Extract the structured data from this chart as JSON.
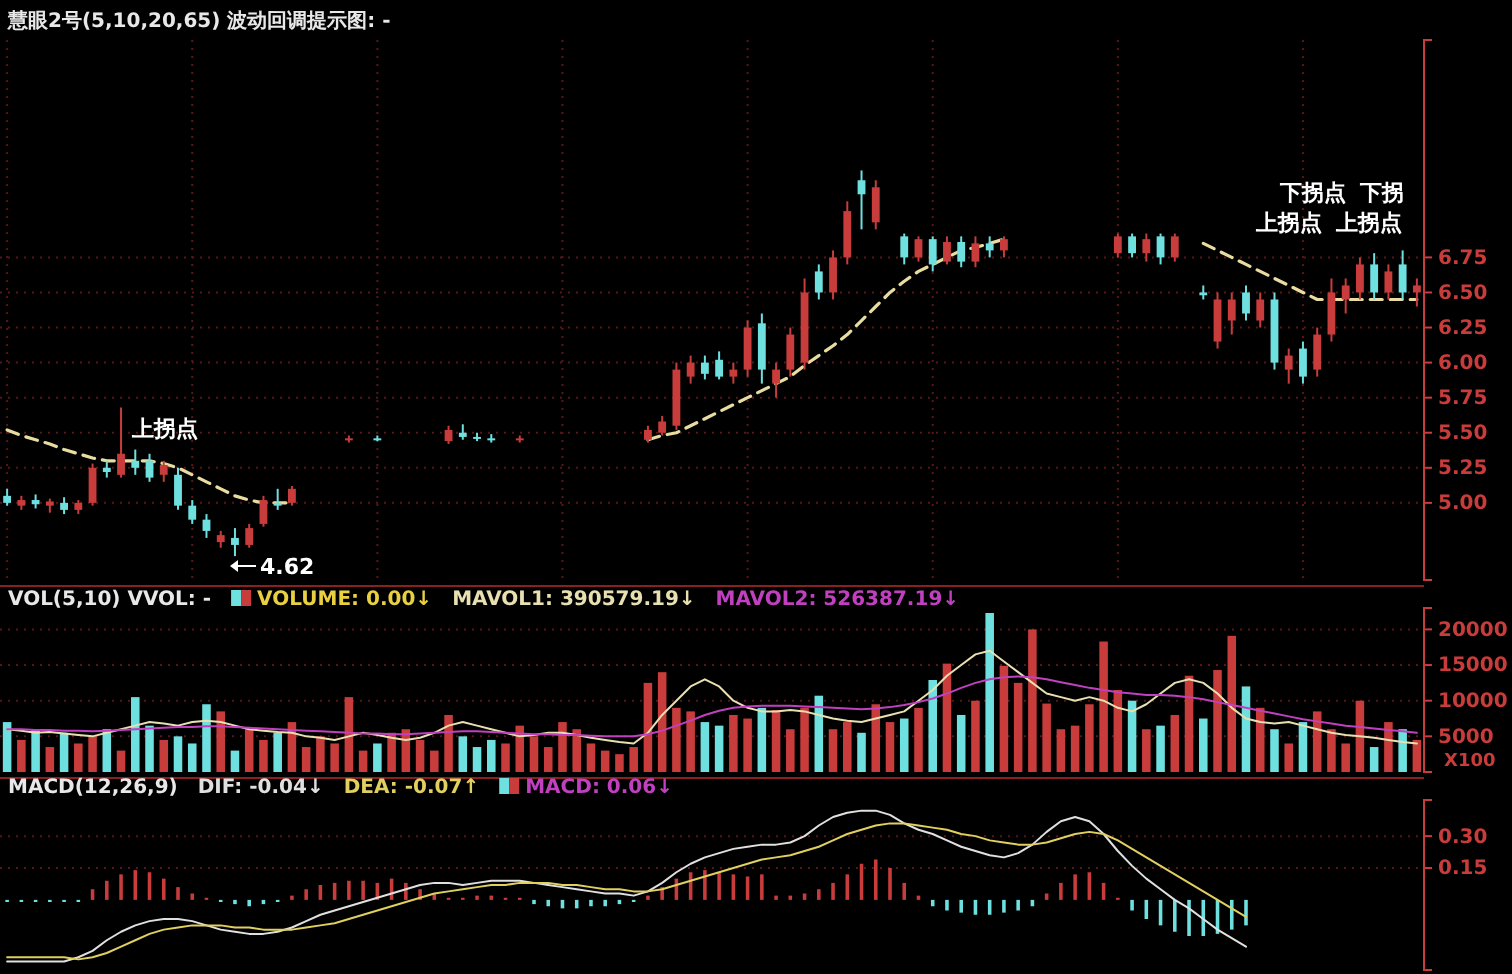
{
  "chart_data": [
    {
      "type": "candlestick",
      "title": "慧眼2号(5,10,20,65) 波动回调提示图: -",
      "categories": [
        null,
        null,
        null,
        null,
        null,
        null,
        null,
        null,
        null,
        null,
        null,
        null,
        null,
        null,
        null,
        null,
        null,
        null,
        null,
        null,
        null,
        null,
        null,
        null,
        null,
        null,
        null,
        null,
        null,
        null,
        null,
        null,
        null,
        null,
        null,
        null,
        null,
        null,
        null,
        null,
        null,
        null,
        null,
        null,
        null,
        null,
        null,
        null,
        null,
        null,
        null,
        null,
        null,
        null,
        null,
        null,
        null,
        null,
        null,
        null,
        null,
        null,
        null,
        null,
        null,
        null,
        null,
        null,
        null,
        null,
        null,
        null,
        null,
        null,
        null,
        null,
        null,
        null,
        null,
        null,
        null,
        null,
        null,
        null,
        null,
        null,
        null,
        null,
        null,
        null,
        null,
        null,
        null,
        null,
        null,
        null,
        null,
        null,
        null,
        null
      ],
      "ohlc": [
        [
          5.05,
          5.1,
          4.98,
          5.0
        ],
        [
          4.98,
          5.05,
          4.95,
          5.02
        ],
        [
          5.02,
          5.06,
          4.96,
          4.99
        ],
        [
          4.98,
          5.03,
          4.93,
          5.01
        ],
        [
          5.0,
          5.04,
          4.92,
          4.95
        ],
        [
          4.95,
          5.02,
          4.92,
          5.0
        ],
        [
          5.0,
          5.28,
          4.98,
          5.25
        ],
        [
          5.25,
          5.3,
          5.18,
          5.22
        ],
        [
          5.2,
          5.68,
          5.18,
          5.35
        ],
        [
          5.3,
          5.38,
          5.2,
          5.25
        ],
        [
          5.3,
          5.35,
          5.15,
          5.18
        ],
        [
          5.2,
          5.3,
          5.15,
          5.27
        ],
        [
          5.2,
          5.25,
          4.95,
          4.98
        ],
        [
          4.98,
          5.02,
          4.85,
          4.88
        ],
        [
          4.88,
          4.92,
          4.75,
          4.8
        ],
        [
          4.72,
          4.8,
          4.68,
          4.77
        ],
        [
          4.75,
          4.82,
          4.62,
          4.7
        ],
        [
          4.7,
          4.85,
          4.68,
          4.82
        ],
        [
          4.85,
          5.05,
          4.83,
          5.02
        ],
        [
          5.0,
          5.1,
          4.95,
          4.98
        ],
        [
          5.0,
          5.12,
          4.98,
          5.1
        ],
        null,
        null,
        null,
        [
          5.45,
          5.48,
          5.43,
          5.46
        ],
        null,
        [
          5.46,
          5.48,
          5.44,
          5.45
        ],
        null,
        null,
        null,
        null,
        [
          5.44,
          5.55,
          5.42,
          5.52
        ],
        [
          5.5,
          5.56,
          5.45,
          5.47
        ],
        [
          5.47,
          5.5,
          5.44,
          5.46
        ],
        [
          5.46,
          5.49,
          5.43,
          5.45
        ],
        null,
        [
          5.45,
          5.48,
          5.43,
          5.46
        ],
        null,
        null,
        null,
        null,
        null,
        null,
        null,
        null,
        [
          5.45,
          5.55,
          5.43,
          5.52
        ],
        [
          5.5,
          5.62,
          5.48,
          5.58
        ],
        [
          5.55,
          6.0,
          5.52,
          5.95
        ],
        [
          5.9,
          6.05,
          5.85,
          6.0
        ],
        [
          6.0,
          6.05,
          5.88,
          5.92
        ],
        [
          6.02,
          6.08,
          5.88,
          5.9
        ],
        [
          5.9,
          6.0,
          5.85,
          5.95
        ],
        [
          5.95,
          6.3,
          5.9,
          6.25
        ],
        [
          6.28,
          6.35,
          5.85,
          5.95
        ],
        [
          5.85,
          6.0,
          5.75,
          5.95
        ],
        [
          5.95,
          6.25,
          5.9,
          6.2
        ],
        [
          6.0,
          6.6,
          5.95,
          6.5
        ],
        [
          6.65,
          6.7,
          6.45,
          6.5
        ],
        [
          6.5,
          6.8,
          6.45,
          6.75
        ],
        [
          6.75,
          7.15,
          6.7,
          7.08
        ],
        [
          7.3,
          7.37,
          6.95,
          7.2
        ],
        [
          7.0,
          7.3,
          6.95,
          7.25
        ],
        null,
        [
          6.9,
          6.92,
          6.7,
          6.75
        ],
        [
          6.75,
          6.9,
          6.72,
          6.88
        ],
        [
          6.88,
          6.9,
          6.65,
          6.7
        ],
        [
          6.72,
          6.9,
          6.7,
          6.86
        ],
        [
          6.86,
          6.9,
          6.68,
          6.72
        ],
        [
          6.72,
          6.9,
          6.68,
          6.85
        ],
        [
          6.85,
          6.9,
          6.75,
          6.8
        ],
        [
          6.8,
          6.9,
          6.75,
          6.88
        ],
        null,
        null,
        null,
        null,
        null,
        null,
        null,
        [
          6.78,
          6.92,
          6.75,
          6.9
        ],
        [
          6.9,
          6.92,
          6.75,
          6.78
        ],
        [
          6.78,
          6.92,
          6.72,
          6.88
        ],
        [
          6.9,
          6.92,
          6.7,
          6.75
        ],
        [
          6.75,
          6.92,
          6.72,
          6.9
        ],
        null,
        [
          6.5,
          6.55,
          6.45,
          6.48
        ],
        [
          6.15,
          6.5,
          6.1,
          6.45
        ],
        [
          6.3,
          6.5,
          6.2,
          6.45
        ],
        [
          6.5,
          6.55,
          6.3,
          6.35
        ],
        [
          6.3,
          6.5,
          6.25,
          6.45
        ],
        [
          6.45,
          6.5,
          5.95,
          6.0
        ],
        [
          5.95,
          6.1,
          5.85,
          6.05
        ],
        [
          6.1,
          6.15,
          5.85,
          5.9
        ],
        [
          5.95,
          6.25,
          5.9,
          6.2
        ],
        [
          6.2,
          6.6,
          6.15,
          6.5
        ],
        [
          6.45,
          6.6,
          6.35,
          6.55
        ],
        [
          6.5,
          6.75,
          6.45,
          6.7
        ],
        [
          6.7,
          6.78,
          6.45,
          6.5
        ],
        [
          6.5,
          6.7,
          6.45,
          6.65
        ],
        [
          6.7,
          6.8,
          6.45,
          6.5
        ],
        [
          6.5,
          6.6,
          6.4,
          6.55
        ]
      ],
      "colors": [
        "#6fe0e0",
        "#c83c3c",
        "#6fe0e0",
        "#c83c3c",
        "#6fe0e0",
        "#c83c3c",
        "#c83c3c",
        "#6fe0e0",
        "#c83c3c",
        "#6fe0e0",
        "#6fe0e0",
        "#c83c3c",
        "#6fe0e0",
        "#6fe0e0",
        "#6fe0e0",
        "#c83c3c",
        "#6fe0e0",
        "#c83c3c",
        "#c83c3c",
        "#6fe0e0",
        "#c83c3c",
        null,
        null,
        null,
        "#c83c3c",
        null,
        "#6fe0e0",
        null,
        null,
        null,
        null,
        "#c83c3c",
        "#6fe0e0",
        "#6fe0e0",
        "#6fe0e0",
        null,
        "#c83c3c",
        null,
        null,
        null,
        null,
        null,
        null,
        null,
        null,
        "#c83c3c",
        "#c83c3c",
        "#c83c3c",
        "#c83c3c",
        "#6fe0e0",
        "#6fe0e0",
        "#c83c3c",
        "#c83c3c",
        "#6fe0e0",
        "#c83c3c",
        "#c83c3c",
        "#c83c3c",
        "#6fe0e0",
        "#c83c3c",
        "#c83c3c",
        "#6fe0e0",
        "#c83c3c",
        null,
        "#6fe0e0",
        "#c83c3c",
        "#6fe0e0",
        "#c83c3c",
        "#6fe0e0",
        "#c83c3c",
        "#6fe0e0",
        "#c83c3c",
        null,
        null,
        null,
        null,
        null,
        null,
        null,
        "#c83c3c",
        "#6fe0e0",
        "#c83c3c",
        "#6fe0e0",
        "#c83c3c",
        null,
        "#6fe0e0",
        "#c83c3c",
        "#c83c3c",
        "#6fe0e0",
        "#c83c3c",
        "#6fe0e0",
        "#c83c3c",
        "#6fe0e0",
        "#c83c3c",
        "#c83c3c",
        "#c83c3c",
        "#c83c3c",
        "#6fe0e0",
        "#c83c3c",
        "#6fe0e0",
        "#c83c3c"
      ],
      "series": [
        {
          "type": "line",
          "color": "#e8dca0",
          "values": [
            5.52,
            5.48,
            5.45,
            5.42,
            5.38,
            5.35,
            5.32,
            5.3,
            5.3,
            5.3,
            5.3,
            5.28,
            5.25,
            5.2,
            5.15,
            5.1,
            5.05,
            5.02,
            5.0,
            5.0,
            5.0,
            null,
            null,
            null,
            null,
            null,
            null,
            null,
            null,
            null,
            null,
            null,
            null,
            null,
            null,
            null,
            null,
            null,
            null,
            null,
            null,
            null,
            null,
            null,
            null,
            5.45,
            5.48,
            5.5,
            5.55,
            5.6,
            5.65,
            5.7,
            5.75,
            5.8,
            5.85,
            5.9,
            5.98,
            6.05,
            6.12,
            6.2,
            6.3,
            6.4,
            6.5,
            6.58,
            6.65,
            6.7,
            6.75,
            6.8,
            6.82,
            6.85,
            6.88,
            null,
            null,
            null,
            null,
            null,
            null,
            null,
            null,
            null,
            null,
            null,
            null,
            null,
            6.85,
            6.8,
            6.75,
            6.7,
            6.65,
            6.6,
            6.55,
            6.5,
            6.45,
            6.45,
            6.45,
            6.45,
            6.45,
            6.45,
            6.45,
            6.45
          ]
        }
      ],
      "line_style": "dashed",
      "ylim": [
        4.45,
        8.3
      ],
      "yticks": [
        {
          "value": 5,
          "label": "5.00"
        },
        {
          "value": 5.25,
          "label": "5.25"
        },
        {
          "value": 5.5,
          "label": "5.50"
        },
        {
          "value": 5.75,
          "label": "5.75"
        },
        {
          "value": 6,
          "label": "6.00"
        },
        {
          "value": 6.25,
          "label": "6.25"
        },
        {
          "value": 6.5,
          "label": "6.50"
        },
        {
          "value": 6.75,
          "label": "6.75"
        }
      ],
      "grid": true,
      "annotations": [
        "上拐点",
        "4.62",
        "下拐点",
        "上拐点",
        "下拐",
        "上拐点"
      ]
    },
    {
      "type": "bar",
      "title": "VOL(5,10) VVOL: -",
      "categories": [
        null,
        null,
        null,
        null,
        null,
        null,
        null,
        null,
        null,
        null,
        null,
        null,
        null,
        null,
        null,
        null,
        null,
        null,
        null,
        null,
        null,
        null,
        null,
        null,
        null,
        null,
        null,
        null,
        null,
        null,
        null,
        null,
        null,
        null,
        null,
        null,
        null,
        null,
        null,
        null,
        null,
        null,
        null,
        null,
        null,
        null,
        null,
        null,
        null,
        null,
        null,
        null,
        null,
        null,
        null,
        null,
        null,
        null,
        null,
        null,
        null,
        null,
        null,
        null,
        null,
        null,
        null,
        null,
        null,
        null,
        null,
        null,
        null,
        null,
        null,
        null,
        null,
        null,
        null,
        null,
        null,
        null,
        null,
        null,
        null,
        null,
        null,
        null,
        null,
        null,
        null,
        null,
        null,
        null,
        null,
        null,
        null,
        null,
        null,
        null
      ],
      "series": [
        {
          "type": "bar",
          "name": "VOLUME: 0.00↓",
          "color": "#e8d040",
          "values": [
            7000,
            4500,
            6000,
            3500,
            5500,
            4000,
            5000,
            6000,
            3000,
            10500,
            6500,
            4500,
            5000,
            4000,
            9500,
            8500,
            3000,
            6000,
            4500,
            5500,
            7000,
            3500,
            5000,
            4000,
            10500,
            3000,
            4000,
            5500,
            6000,
            4500,
            3000,
            8000,
            5000,
            3500,
            4500,
            4000,
            6500,
            5000,
            3500,
            7000,
            6000,
            4000,
            3000,
            2500,
            3500,
            12500,
            14000,
            9000,
            8500,
            7000,
            6500,
            8000,
            7500,
            9000,
            8700,
            6000,
            9000,
            10700,
            6000,
            7000,
            5500,
            9500,
            7000,
            7500,
            9000,
            12900,
            15200,
            8000,
            10000,
            22300,
            14900,
            12500,
            20000,
            9600,
            6000,
            6500,
            9500,
            18300,
            11500,
            10000,
            6000,
            6500,
            8000,
            13500,
            7500,
            14300,
            19100,
            12000,
            9000,
            6000,
            4000,
            7000,
            8500,
            6000,
            4000,
            10000,
            3500,
            7000,
            6000,
            4500
          ],
          "colors": [
            "#6fe0e0",
            "#c83c3c",
            "#6fe0e0",
            "#c83c3c",
            "#6fe0e0",
            "#c83c3c",
            "#c83c3c",
            "#6fe0e0",
            "#c83c3c",
            "#6fe0e0",
            "#6fe0e0",
            "#c83c3c",
            "#6fe0e0",
            "#6fe0e0",
            "#6fe0e0",
            "#c83c3c",
            "#6fe0e0",
            "#c83c3c",
            "#c83c3c",
            "#6fe0e0",
            "#c83c3c",
            "#c83c3c",
            "#c83c3c",
            "#c83c3c",
            "#c83c3c",
            "#c83c3c",
            "#6fe0e0",
            "#c83c3c",
            "#c83c3c",
            "#c83c3c",
            "#c83c3c",
            "#c83c3c",
            "#6fe0e0",
            "#6fe0e0",
            "#6fe0e0",
            "#c83c3c",
            "#c83c3c",
            "#c83c3c",
            "#c83c3c",
            "#c83c3c",
            "#c83c3c",
            "#c83c3c",
            "#c83c3c",
            "#c83c3c",
            "#c83c3c",
            "#c83c3c",
            "#c83c3c",
            "#c83c3c",
            "#c83c3c",
            "#6fe0e0",
            "#6fe0e0",
            "#c83c3c",
            "#c83c3c",
            "#6fe0e0",
            "#c83c3c",
            "#c83c3c",
            "#c83c3c",
            "#6fe0e0",
            "#c83c3c",
            "#c83c3c",
            "#6fe0e0",
            "#c83c3c",
            "#c83c3c",
            "#6fe0e0",
            "#c83c3c",
            "#6fe0e0",
            "#c83c3c",
            "#6fe0e0",
            "#c83c3c",
            "#6fe0e0",
            "#c83c3c",
            "#c83c3c",
            "#c83c3c",
            "#c83c3c",
            "#c83c3c",
            "#c83c3c",
            "#c83c3c",
            "#c83c3c",
            "#c83c3c",
            "#6fe0e0",
            "#c83c3c",
            "#6fe0e0",
            "#c83c3c",
            "#c83c3c",
            "#6fe0e0",
            "#c83c3c",
            "#c83c3c",
            "#6fe0e0",
            "#c83c3c",
            "#6fe0e0",
            "#c83c3c",
            "#6fe0e0",
            "#c83c3c",
            "#c83c3c",
            "#c83c3c",
            "#c83c3c",
            "#6fe0e0",
            "#c83c3c",
            "#6fe0e0",
            "#c83c3c"
          ]
        },
        {
          "type": "line",
          "name": "MAVOL1: 390579.19↓",
          "color": "#e8e0b0",
          "values": [
            6000,
            5800,
            5500,
            5600,
            5400,
            5200,
            5000,
            5500,
            6000,
            6500,
            7000,
            6800,
            6500,
            7000,
            7200,
            7000,
            6500,
            6000,
            5800,
            5600,
            5500,
            5000,
            4800,
            4500,
            5000,
            5500,
            5200,
            4800,
            4500,
            4800,
            5500,
            6500,
            7000,
            6500,
            6000,
            5500,
            5000,
            5200,
            5500,
            5500,
            5200,
            4800,
            4500,
            4200,
            4000,
            5500,
            8000,
            10000,
            12000,
            13000,
            12000,
            10000,
            9000,
            8500,
            8500,
            8700,
            8500,
            8000,
            7500,
            7200,
            7000,
            7500,
            8000,
            8500,
            10000,
            11500,
            13500,
            15000,
            16500,
            17000,
            15500,
            14000,
            12500,
            11000,
            10500,
            10000,
            10500,
            10000,
            9000,
            8500,
            9500,
            11000,
            12500,
            13000,
            12500,
            11000,
            9000,
            7500,
            7000,
            6800,
            7000,
            6500,
            6000,
            5500,
            5200,
            5000,
            4800,
            4500,
            4200,
            4000
          ]
        },
        {
          "type": "line",
          "name": "MAVOL2: 526387.19↓",
          "color": "#c040c0",
          "values": [
            6000,
            6000,
            5900,
            5900,
            5800,
            5800,
            5700,
            5800,
            5900,
            6000,
            6100,
            6200,
            6300,
            6300,
            6400,
            6400,
            6300,
            6200,
            6100,
            6000,
            5900,
            5800,
            5700,
            5600,
            5500,
            5400,
            5400,
            5300,
            5300,
            5400,
            5500,
            5600,
            5700,
            5700,
            5600,
            5500,
            5400,
            5300,
            5300,
            5200,
            5200,
            5100,
            5000,
            5000,
            5000,
            5300,
            5800,
            6500,
            7200,
            8000,
            8600,
            9000,
            9200,
            9300,
            9300,
            9300,
            9200,
            9100,
            9000,
            8900,
            8800,
            8900,
            9100,
            9400,
            9800,
            10300,
            11000,
            11800,
            12500,
            13000,
            13300,
            13400,
            13300,
            13000,
            12600,
            12200,
            11800,
            11500,
            11200,
            11000,
            10800,
            10800,
            10700,
            10500,
            10200,
            9800,
            9400,
            9000,
            8600,
            8200,
            7800,
            7400,
            7100,
            6800,
            6500,
            6300,
            6100,
            5900,
            5700,
            5500
          ]
        }
      ],
      "ylim": [
        0,
        23000
      ],
      "yticks": [
        5000,
        10000,
        15000,
        20000
      ],
      "grid": "y",
      "legend": "top left",
      "annotations": [
        "X100"
      ]
    },
    {
      "type": "bar",
      "title": "MACD(12,26,9)",
      "categories": [
        null,
        null,
        null,
        null,
        null,
        null,
        null,
        null,
        null,
        null,
        null,
        null,
        null,
        null,
        null,
        null,
        null,
        null,
        null,
        null,
        null,
        null,
        null,
        null,
        null,
        null,
        null,
        null,
        null,
        null,
        null,
        null,
        null,
        null,
        null,
        null,
        null,
        null,
        null,
        null,
        null,
        null,
        null,
        null,
        null,
        null,
        null,
        null,
        null,
        null,
        null,
        null,
        null,
        null,
        null,
        null,
        null,
        null,
        null,
        null,
        null,
        null,
        null,
        null,
        null,
        null,
        null,
        null,
        null,
        null,
        null,
        null,
        null,
        null,
        null,
        null,
        null,
        null,
        null,
        null,
        null,
        null,
        null,
        null,
        null,
        null,
        null,
        null,
        null,
        null,
        null,
        null,
        null,
        null,
        null,
        null,
        null,
        null,
        null,
        null
      ],
      "series": [
        {
          "type": "line",
          "name": "DIF: -0.04↓",
          "color": "#e0e0e0",
          "values": [
            -0.29,
            -0.29,
            -0.29,
            -0.29,
            -0.29,
            -0.27,
            -0.24,
            -0.19,
            -0.15,
            -0.12,
            -0.1,
            -0.09,
            -0.09,
            -0.1,
            -0.12,
            -0.14,
            -0.15,
            -0.16,
            -0.16,
            -0.15,
            -0.13,
            -0.1,
            -0.07,
            -0.05,
            -0.03,
            -0.01,
            0.01,
            0.03,
            0.05,
            0.07,
            0.08,
            0.08,
            0.07,
            0.08,
            0.09,
            0.09,
            0.09,
            0.08,
            0.07,
            0.06,
            0.05,
            0.04,
            0.03,
            0.03,
            0.02,
            0.04,
            0.08,
            0.13,
            0.17,
            0.2,
            0.22,
            0.24,
            0.25,
            0.26,
            0.26,
            0.27,
            0.3,
            0.35,
            0.39,
            0.41,
            0.42,
            0.42,
            0.4,
            0.36,
            0.33,
            0.31,
            0.28,
            0.25,
            0.23,
            0.21,
            0.2,
            0.22,
            0.26,
            0.32,
            0.37,
            0.39,
            0.37,
            0.31,
            0.23,
            0.16,
            0.1,
            0.05,
            0.0,
            -0.04,
            -0.09,
            -0.14,
            -0.18,
            -0.22,
            null,
            null,
            null,
            null,
            null,
            null,
            null,
            null,
            null,
            null,
            null,
            null
          ]
        },
        {
          "type": "line",
          "name": "DEA: -0.07↑",
          "color": "#e0d060",
          "values": [
            -0.27,
            -0.27,
            -0.27,
            -0.27,
            -0.27,
            -0.28,
            -0.27,
            -0.25,
            -0.22,
            -0.19,
            -0.16,
            -0.14,
            -0.13,
            -0.12,
            -0.12,
            -0.12,
            -0.13,
            -0.13,
            -0.14,
            -0.14,
            -0.14,
            -0.13,
            -0.12,
            -0.11,
            -0.09,
            -0.07,
            -0.05,
            -0.03,
            -0.01,
            0.01,
            0.03,
            0.04,
            0.05,
            0.06,
            0.07,
            0.07,
            0.08,
            0.08,
            0.08,
            0.07,
            0.07,
            0.06,
            0.05,
            0.05,
            0.04,
            0.04,
            0.05,
            0.07,
            0.09,
            0.11,
            0.13,
            0.15,
            0.17,
            0.19,
            0.2,
            0.21,
            0.23,
            0.25,
            0.28,
            0.31,
            0.33,
            0.35,
            0.36,
            0.36,
            0.35,
            0.34,
            0.33,
            0.31,
            0.3,
            0.28,
            0.27,
            0.26,
            0.26,
            0.27,
            0.29,
            0.31,
            0.32,
            0.31,
            0.28,
            0.24,
            0.2,
            0.16,
            0.12,
            0.08,
            0.04,
            0.0,
            -0.04,
            -0.08,
            null,
            null,
            null,
            null,
            null,
            null,
            null,
            null,
            null,
            null,
            null,
            null
          ]
        },
        {
          "type": "bar",
          "name": "MACD: 0.06↓",
          "color": "#c040c0",
          "values": [
            -0.01,
            -0.01,
            -0.01,
            -0.01,
            -0.01,
            -0.01,
            0.05,
            0.09,
            0.12,
            0.14,
            0.13,
            0.1,
            0.06,
            0.03,
            0.01,
            -0.01,
            -0.02,
            -0.03,
            -0.02,
            -0.01,
            0.02,
            0.05,
            0.07,
            0.08,
            0.09,
            0.09,
            0.08,
            0.1,
            0.08,
            0.05,
            0.03,
            0.01,
            0.01,
            0.02,
            0.02,
            0.01,
            0.01,
            -0.02,
            -0.03,
            -0.04,
            -0.04,
            -0.03,
            -0.03,
            -0.02,
            -0.01,
            0.02,
            0.06,
            0.1,
            0.13,
            0.14,
            0.13,
            0.12,
            0.11,
            0.12,
            0.02,
            0.02,
            0.03,
            0.05,
            0.08,
            0.12,
            0.17,
            0.19,
            0.15,
            0.08,
            0.02,
            -0.03,
            -0.05,
            -0.06,
            -0.07,
            -0.07,
            -0.06,
            -0.05,
            -0.03,
            0.03,
            0.08,
            0.12,
            0.13,
            0.08,
            0.01,
            -0.05,
            -0.09,
            -0.12,
            -0.15,
            -0.17,
            -0.17,
            -0.16,
            -0.14,
            -0.12,
            null,
            null,
            null,
            null,
            null,
            null,
            null,
            null,
            null,
            null,
            null,
            null
          ],
          "colors": [
            "#6fe0e0",
            "#6fe0e0",
            "#6fe0e0",
            "#6fe0e0",
            "#6fe0e0",
            "#6fe0e0",
            "#c83c3c",
            "#c83c3c",
            "#c83c3c",
            "#c83c3c",
            "#c83c3c",
            "#c83c3c",
            "#c83c3c",
            "#c83c3c",
            "#c83c3c",
            "#6fe0e0",
            "#6fe0e0",
            "#6fe0e0",
            "#6fe0e0",
            "#6fe0e0",
            "#c83c3c",
            "#c83c3c",
            "#c83c3c",
            "#c83c3c",
            "#c83c3c",
            "#c83c3c",
            "#c83c3c",
            "#c83c3c",
            "#c83c3c",
            "#c83c3c",
            "#c83c3c",
            "#c83c3c",
            "#c83c3c",
            "#c83c3c",
            "#c83c3c",
            "#c83c3c",
            "#c83c3c",
            "#6fe0e0",
            "#6fe0e0",
            "#6fe0e0",
            "#6fe0e0",
            "#6fe0e0",
            "#6fe0e0",
            "#6fe0e0",
            "#6fe0e0",
            "#c83c3c",
            "#c83c3c",
            "#c83c3c",
            "#c83c3c",
            "#c83c3c",
            "#c83c3c",
            "#c83c3c",
            "#c83c3c",
            "#c83c3c",
            "#c83c3c",
            "#c83c3c",
            "#c83c3c",
            "#c83c3c",
            "#c83c3c",
            "#c83c3c",
            "#c83c3c",
            "#c83c3c",
            "#c83c3c",
            "#c83c3c",
            "#c83c3c",
            "#6fe0e0",
            "#6fe0e0",
            "#6fe0e0",
            "#6fe0e0",
            "#6fe0e0",
            "#6fe0e0",
            "#6fe0e0",
            "#6fe0e0",
            "#c83c3c",
            "#c83c3c",
            "#c83c3c",
            "#c83c3c",
            "#c83c3c",
            "#c83c3c",
            "#6fe0e0",
            "#6fe0e0",
            "#6fe0e0",
            "#6fe0e0",
            "#6fe0e0",
            "#6fe0e0",
            "#6fe0e0",
            "#6fe0e0",
            "#6fe0e0",
            null,
            null,
            null,
            null,
            null,
            null,
            null,
            null,
            null,
            null,
            null,
            null
          ]
        }
      ],
      "ylim": [
        -0.33,
        0.47
      ],
      "yticks": [
        {
          "value": 0.15,
          "label": "0.15"
        },
        {
          "value": 0.3,
          "label": "0.30"
        }
      ],
      "grid": "y",
      "legend": "top left"
    }
  ]
}
